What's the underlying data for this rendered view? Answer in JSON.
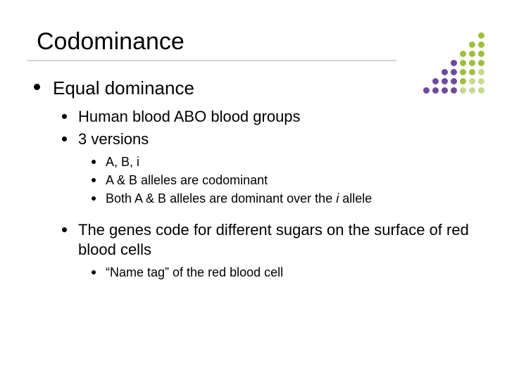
{
  "slide": {
    "title": "Codominance",
    "title_fontsize": 34,
    "underline_color": "#d6d1da",
    "background_color": "#ffffff",
    "text_color": "#000000"
  },
  "bullets": {
    "l1_0": "Equal dominance",
    "l2_0": "Human blood ABO blood groups",
    "l2_1": "3 versions",
    "l3_0": "A, B, i",
    "l3_1": "A & B alleles are codominant",
    "l3_2_a": "Both A & B alleles are dominant over the ",
    "l3_2_b": "i",
    "l3_2_c": " allele",
    "l2_2": "The genes code for different sugars on the surface of red blood cells",
    "l3_3": "“Name tag” of the red blood cell"
  },
  "dot_grid": {
    "dim_opacity": 0.25,
    "solid_opacity": 1.0,
    "rows": [
      [
        "#ffffff00",
        "#ffffff00",
        "#ffffff00",
        "#ffffff00",
        "#ffffff00",
        "#ffffff00",
        "#9dbf3b"
      ],
      [
        "#ffffff00",
        "#ffffff00",
        "#ffffff00",
        "#ffffff00",
        "#ffffff00",
        "#9dbf3b",
        "#9dbf3b"
      ],
      [
        "#ffffff00",
        "#ffffff00",
        "#ffffff00",
        "#ffffff00",
        "#9dbf3b",
        "#9dbf3b",
        "#9dbf3b"
      ],
      [
        "#ffffff00",
        "#ffffff00",
        "#ffffff00",
        "#6e4a9e",
        "#9dbf3b",
        "#9dbf3b",
        "#9dbf3b"
      ],
      [
        "#ffffff00",
        "#ffffff00",
        "#6e4a9e",
        "#6e4a9e",
        "#9dbf3b",
        "#9dbf3b",
        "#c7d98e"
      ],
      [
        "#ffffff00",
        "#6e4a9e",
        "#6e4a9e",
        "#6e4a9e",
        "#9dbf3b",
        "#c7d98e",
        "#c7d98e"
      ],
      [
        "#6e4a9e",
        "#6e4a9e",
        "#6e4a9e",
        "#6e4a9e",
        "#c7d98e",
        "#c7d98e",
        "#c7d98e"
      ]
    ]
  }
}
